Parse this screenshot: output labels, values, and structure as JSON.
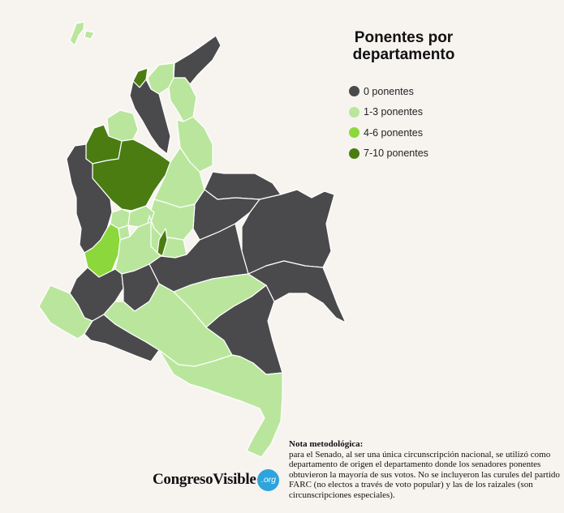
{
  "map": {
    "title": "Ponentes por departamento",
    "legend": [
      {
        "label": "0 ponentes",
        "color": "#4a4a4c"
      },
      {
        "label": "1-3 ponentes",
        "color": "#b9e69c"
      },
      {
        "label": "4-6 ponentes",
        "color": "#8cd83c"
      },
      {
        "label": "7-10 ponentes",
        "color": "#4a7c12"
      }
    ]
  },
  "note": {
    "title": "Nota metodológica:",
    "body": "para el Senado, al ser una única circunscripción nacional, se utilizó como departamento de origen el departamento donde los senadores ponentes obtuvieron la mayoría de sus votos. No se incluyeron las curules del partido FARC (no electos a través de voto popular) y las de los raizales (son circunscripciones especiales)."
  },
  "logo": {
    "name": "CongresoVisible",
    "suffix": ".org"
  }
}
